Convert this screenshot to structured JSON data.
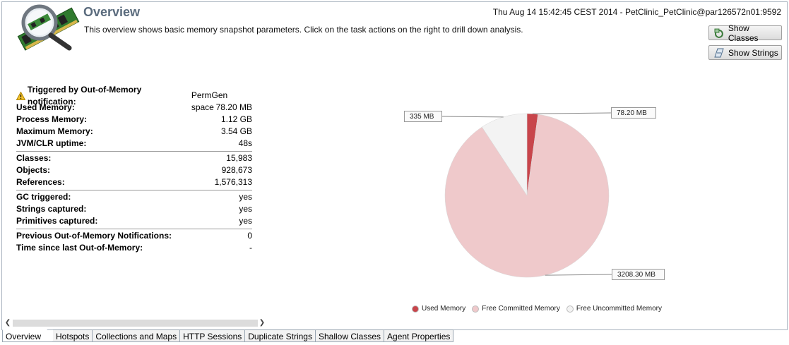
{
  "header": {
    "title": "Overview",
    "subtitle": "This overview shows basic memory snapshot parameters. Click on the task actions on the right to drill down analysis.",
    "timestamp": "Thu Aug 14 15:42:45 CEST 2014 - PetClinic_PetClinic@par126572n01:9592"
  },
  "actions": {
    "show_classes": "Show Classes",
    "show_strings": "Show Strings"
  },
  "stats": {
    "trigger_label": "Triggered by Out-of-Memory notification:",
    "trigger_value": "PermGen space",
    "used_memory_label": "Used Memory:",
    "used_memory_value": "78.20 MB",
    "process_memory_label": "Process Memory:",
    "process_memory_value": "1.12 GB",
    "max_memory_label": "Maximum Memory:",
    "max_memory_value": "3.54 GB",
    "uptime_label": "JVM/CLR uptime:",
    "uptime_value": "48s",
    "classes_label": "Classes:",
    "classes_value": "15,983",
    "objects_label": "Objects:",
    "objects_value": "928,673",
    "references_label": "References:",
    "references_value": "1,576,313",
    "gc_label": "GC triggered:",
    "gc_value": "yes",
    "strings_label": "Strings captured:",
    "strings_value": "yes",
    "primitives_label": "Primitives captured:",
    "primitives_value": "yes",
    "prev_oom_label": "Previous Out-of-Memory Notifications:",
    "prev_oom_value": "0",
    "since_oom_label": "Time since last Out-of-Memory:",
    "since_oom_value": "-"
  },
  "chart_data": {
    "type": "pie",
    "slices": [
      {
        "name": "Used Memory",
        "value": 78.2,
        "label": "78.20 MB",
        "color": "#c8454b"
      },
      {
        "name": "Free Committed Memory",
        "value": 3208.3,
        "label": "3208.30 MB",
        "color": "#efc9cb"
      },
      {
        "name": "Free Uncommitted Memory",
        "value": 335,
        "label": "335 MB",
        "color": "#f3f3f3"
      }
    ],
    "legend_position": "bottom"
  },
  "tabs": [
    "Overview",
    "Hotspots",
    "Collections and Maps",
    "HTTP Sessions",
    "Duplicate Strings",
    "Shallow Classes",
    "Agent Properties"
  ]
}
